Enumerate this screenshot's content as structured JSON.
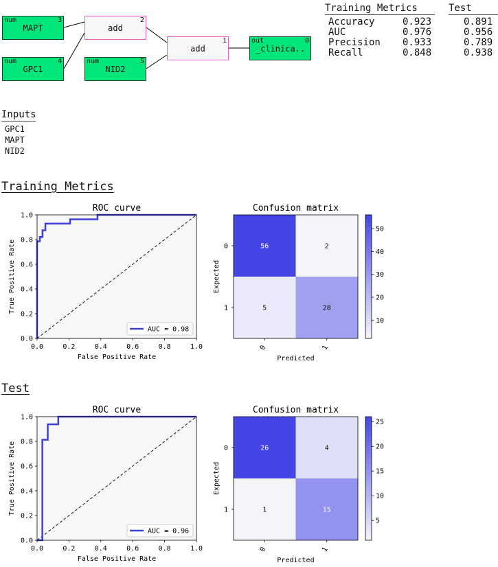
{
  "graph": {
    "nodes": [
      {
        "id": "n3",
        "kind": "num",
        "label": "MAPT",
        "index": "3",
        "style": "green"
      },
      {
        "id": "n4",
        "kind": "num",
        "label": "GPC1",
        "index": "4",
        "style": "green"
      },
      {
        "id": "n2",
        "kind": "",
        "label": "add",
        "index": "2",
        "style": "pink"
      },
      {
        "id": "n5",
        "kind": "num",
        "label": "NID2",
        "index": "5",
        "style": "green"
      },
      {
        "id": "n1",
        "kind": "",
        "label": "add",
        "index": "1",
        "style": "pink"
      },
      {
        "id": "n0",
        "kind": "out",
        "label": "_clinica..",
        "index": "0",
        "style": "green"
      }
    ]
  },
  "metrics_table": {
    "headers": [
      "Training Metrics",
      "Test"
    ],
    "rows": [
      {
        "name": "Accuracy",
        "train": "0.923",
        "test": "0.891"
      },
      {
        "name": "AUC",
        "train": "0.976",
        "test": "0.956"
      },
      {
        "name": "Precision",
        "train": "0.933",
        "test": "0.789"
      },
      {
        "name": "Recall",
        "train": "0.848",
        "test": "0.938"
      }
    ]
  },
  "inputs": {
    "title": "Inputs",
    "items": [
      "GPC1",
      "MAPT",
      "NID2"
    ]
  },
  "sections": {
    "training": "Training Metrics",
    "test": "Test"
  },
  "colors": {
    "roc_line": "#4040d9",
    "node_green": "#00e67a",
    "node_pink_border": "#e85fd0",
    "cm_max": "#4545e6",
    "cm_min": "#f4f4fb"
  },
  "chart_data": [
    {
      "type": "line",
      "panel": "training-roc",
      "title": "ROC curve",
      "xlabel": "False Positive Rate",
      "ylabel": "True Positive Rate",
      "xlim": [
        0,
        1
      ],
      "ylim": [
        0,
        1
      ],
      "xticks": [
        "0.0",
        "0.2",
        "0.4",
        "0.6",
        "0.8",
        "1.0"
      ],
      "yticks": [
        "0.0",
        "0.2",
        "0.4",
        "0.6",
        "0.8",
        "1.0"
      ],
      "legend": "AUC = 0.98",
      "legend_position": "lower-right",
      "x": [
        0,
        0,
        0.017,
        0.017,
        0.034,
        0.034,
        0.052,
        0.052,
        0.207,
        0.207,
        0.379,
        0.379,
        1.0
      ],
      "y": [
        0,
        0.786,
        0.786,
        0.821,
        0.821,
        0.875,
        0.875,
        0.929,
        0.929,
        0.964,
        0.964,
        1.0,
        1.0
      ]
    },
    {
      "type": "heatmap",
      "panel": "training-cm",
      "title": "Confusion matrix",
      "xlabel": "Predicted",
      "ylabel": "Expected",
      "x_categories": [
        "0",
        "1"
      ],
      "y_categories": [
        "0",
        "1"
      ],
      "values": [
        [
          56,
          2
        ],
        [
          5,
          28
        ]
      ],
      "colorbar_ticks": [
        10,
        20,
        30,
        40,
        50
      ],
      "colorbar_range": [
        2,
        56
      ]
    },
    {
      "type": "line",
      "panel": "test-roc",
      "title": "ROC curve",
      "xlabel": "False Positive Rate",
      "ylabel": "True Positive Rate",
      "xlim": [
        0,
        1
      ],
      "ylim": [
        0,
        1
      ],
      "xticks": [
        "0.0",
        "0.2",
        "0.4",
        "0.6",
        "0.8",
        "1.0"
      ],
      "yticks": [
        "0.0",
        "0.2",
        "0.4",
        "0.6",
        "0.8",
        "1.0"
      ],
      "legend": "AUC = 0.96",
      "legend_position": "lower-right",
      "x": [
        0,
        0.033,
        0.033,
        0.067,
        0.067,
        0.133,
        0.133,
        1.0
      ],
      "y": [
        0,
        0,
        0.813,
        0.813,
        0.938,
        0.938,
        1.0,
        1.0
      ]
    },
    {
      "type": "heatmap",
      "panel": "test-cm",
      "title": "Confusion matrix",
      "xlabel": "Predicted",
      "ylabel": "Expected",
      "x_categories": [
        "0",
        "1"
      ],
      "y_categories": [
        "0",
        "1"
      ],
      "values": [
        [
          26,
          4
        ],
        [
          1,
          15
        ]
      ],
      "colorbar_ticks": [
        5,
        10,
        15,
        20,
        25
      ],
      "colorbar_range": [
        1,
        26
      ]
    }
  ]
}
